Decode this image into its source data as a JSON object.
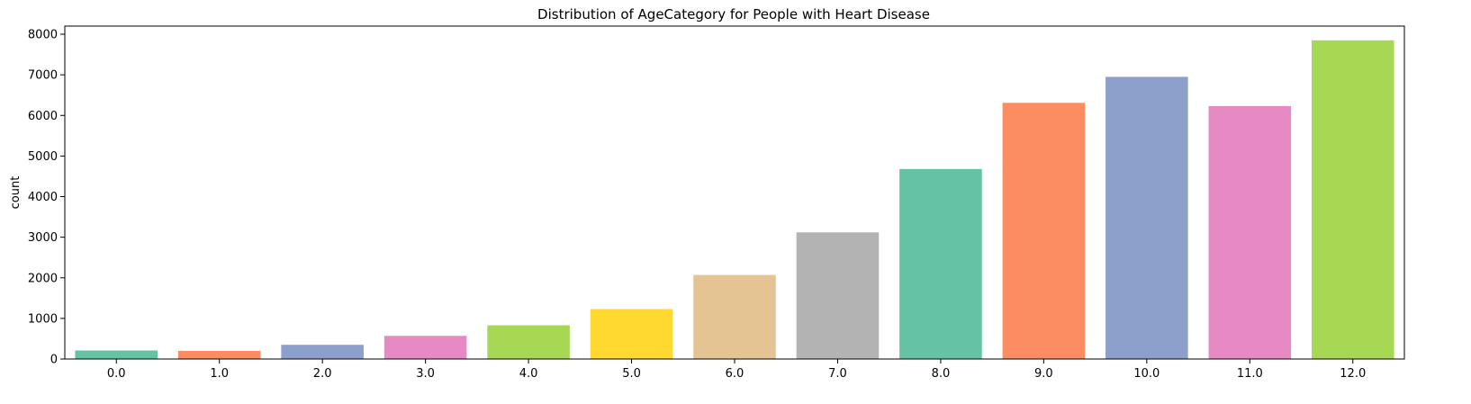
{
  "chart_data": {
    "type": "bar",
    "title": "Distribution of AgeCategory for People with Heart Disease",
    "xlabel": "",
    "ylabel": "count",
    "categories": [
      "0.0",
      "1.0",
      "2.0",
      "3.0",
      "4.0",
      "5.0",
      "6.0",
      "7.0",
      "8.0",
      "9.0",
      "10.0",
      "11.0",
      "12.0"
    ],
    "values": [
      210,
      200,
      350,
      570,
      830,
      1230,
      2070,
      3120,
      4680,
      6310,
      6950,
      6230,
      7850
    ],
    "colors": [
      "#66c2a5",
      "#fc8d62",
      "#8da0cb",
      "#e78ac3",
      "#a6d854",
      "#ffd92f",
      "#e5c494",
      "#b3b3b3",
      "#66c2a5",
      "#fc8d62",
      "#8da0cb",
      "#e78ac3",
      "#a6d854"
    ],
    "ylim": [
      0,
      8200
    ],
    "yticks": [
      0,
      1000,
      2000,
      3000,
      4000,
      5000,
      6000,
      7000,
      8000
    ],
    "grid": false,
    "legend": "none"
  }
}
